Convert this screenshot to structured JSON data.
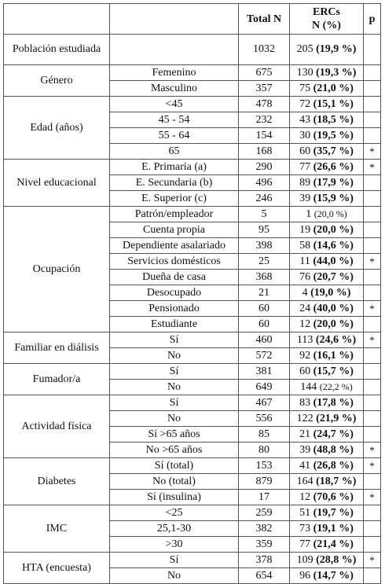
{
  "header": {
    "col_total": "Total N",
    "col_ercs": "ERCs\nN (%)",
    "col_ercs_line1": "ERCs",
    "col_ercs_line2": "N (%)",
    "col_p": "p"
  },
  "groups": [
    {
      "label": "Población estudiada",
      "rows": [
        {
          "sub": "",
          "total": "1032",
          "n": "205",
          "pct": "(19,9 %)",
          "bold": true,
          "star": ""
        }
      ]
    },
    {
      "label": "Género",
      "rows": [
        {
          "sub": "Femenino",
          "total": "675",
          "n": "130",
          "pct": "(19,3 %)",
          "bold": true,
          "star": ""
        },
        {
          "sub": "Masculino",
          "total": "357",
          "n": "75",
          "pct": "(21,0 %)",
          "bold": true,
          "star": ""
        }
      ]
    },
    {
      "label": "Edad (años)",
      "rows": [
        {
          "sub": "<45",
          "total": "478",
          "n": "72",
          "pct": "(15,1 %)",
          "bold": true,
          "star": ""
        },
        {
          "sub": "45 - 54",
          "total": "232",
          "n": "43",
          "pct": "(18,5 %)",
          "bold": true,
          "star": ""
        },
        {
          "sub": "55 - 64",
          "total": "154",
          "n": "30",
          "pct": "(19,5 %)",
          "bold": true,
          "star": ""
        },
        {
          "sub": "65",
          "total": "168",
          "n": "60",
          "pct": "(35,7 %)",
          "bold": true,
          "star": "*"
        }
      ]
    },
    {
      "label": "Nivel educacional",
      "rows": [
        {
          "sub": "E. Primaria (a)",
          "total": "290",
          "n": "77",
          "pct": "(26,6 %)",
          "bold": true,
          "star": "*"
        },
        {
          "sub": "E. Secundaria (b)",
          "total": "496",
          "n": "89",
          "pct": "(17,9 %)",
          "bold": true,
          "star": ""
        },
        {
          "sub": "E. Superior (c)",
          "total": "246",
          "n": "39",
          "pct": "(15,9 %)",
          "bold": true,
          "star": ""
        }
      ]
    },
    {
      "label": "Ocupación",
      "rows": [
        {
          "sub": "Patrón/empleador",
          "total": "5",
          "n": "1",
          "pct": "(20,0 %)",
          "bold": false,
          "star": ""
        },
        {
          "sub": "Cuenta propia",
          "total": "95",
          "n": "19",
          "pct": "(20,0 %)",
          "bold": true,
          "star": ""
        },
        {
          "sub": "Dependiente asalariado",
          "total": "398",
          "n": "58",
          "pct": "(14,6 %)",
          "bold": true,
          "star": ""
        },
        {
          "sub": "Servicios domésticos",
          "total": "25",
          "n": "11",
          "pct": "(44,0 %)",
          "bold": true,
          "star": "*"
        },
        {
          "sub": "Dueña de casa",
          "total": "368",
          "n": "76",
          "pct": "(20,7 %)",
          "bold": true,
          "star": ""
        },
        {
          "sub": "Desocupado",
          "total": "21",
          "n": "4",
          "pct": "(19,0 %)",
          "bold": true,
          "star": ""
        },
        {
          "sub": "Pensionado",
          "total": "60",
          "n": "24",
          "pct": "(40,0 %)",
          "bold": true,
          "star": "*"
        },
        {
          "sub": "Estudiante",
          "total": "60",
          "n": "12",
          "pct": "(20,0 %)",
          "bold": true,
          "star": ""
        }
      ]
    },
    {
      "label": "Familiar en diálisis",
      "rows": [
        {
          "sub": "Sí",
          "total": "460",
          "n": "113",
          "pct": "(24,6 %)",
          "bold": true,
          "star": "*"
        },
        {
          "sub": "No",
          "total": "572",
          "n": "92",
          "pct": "(16,1 %)",
          "bold": true,
          "star": ""
        }
      ]
    },
    {
      "label": "Fumador/a",
      "rows": [
        {
          "sub": "Sí",
          "total": "381",
          "n": "60",
          "pct": "(15,7 %)",
          "bold": true,
          "star": ""
        },
        {
          "sub": "No",
          "total": "649",
          "n": "144",
          "pct": "(22,2 %)",
          "bold": false,
          "star": ""
        }
      ]
    },
    {
      "label": "Actividad física",
      "rows": [
        {
          "sub": "Sí",
          "total": "467",
          "n": "83",
          "pct": "(17,8 %)",
          "bold": true,
          "star": ""
        },
        {
          "sub": "No",
          "total": "556",
          "n": "122",
          "pct": "(21,9 %)",
          "bold": true,
          "star": ""
        },
        {
          "sub": "Sí >65 años",
          "total": "85",
          "n": "21",
          "pct": "(24,7 %)",
          "bold": true,
          "star": ""
        },
        {
          "sub": "No >65 años",
          "total": "80",
          "n": "39",
          "pct": "(48,8 %)",
          "bold": true,
          "star": "*"
        }
      ]
    },
    {
      "label": "Diabetes",
      "rows": [
        {
          "sub": "Sí (total)",
          "total": "153",
          "n": "41",
          "pct": "(26,8 %)",
          "bold": true,
          "star": "*"
        },
        {
          "sub": "No (total)",
          "total": "879",
          "n": "164",
          "pct": "(18,7 %)",
          "bold": true,
          "star": ""
        },
        {
          "sub": "Sí (insulina)",
          "total": "17",
          "n": "12",
          "pct": "(70,6 %)",
          "bold": true,
          "star": "*"
        }
      ]
    },
    {
      "label": "IMC",
      "rows": [
        {
          "sub": "<25",
          "total": "259",
          "n": "51",
          "pct": "(19,7 %)",
          "bold": true,
          "star": ""
        },
        {
          "sub": "25,1-30",
          "total": "382",
          "n": "73",
          "pct": "(19,1 %)",
          "bold": true,
          "star": ""
        },
        {
          "sub": ">30",
          "total": "359",
          "n": "77",
          "pct": "(21,4 %)",
          "bold": true,
          "star": ""
        }
      ]
    },
    {
      "label": "HTA (encuesta)",
      "rows": [
        {
          "sub": "Sí",
          "total": "378",
          "n": "109",
          "pct": "(28,8 %)",
          "bold": true,
          "star": "*"
        },
        {
          "sub": "No",
          "total": "654",
          "n": "96",
          "pct": "(14,7 %)",
          "bold": true,
          "star": ""
        }
      ]
    }
  ]
}
